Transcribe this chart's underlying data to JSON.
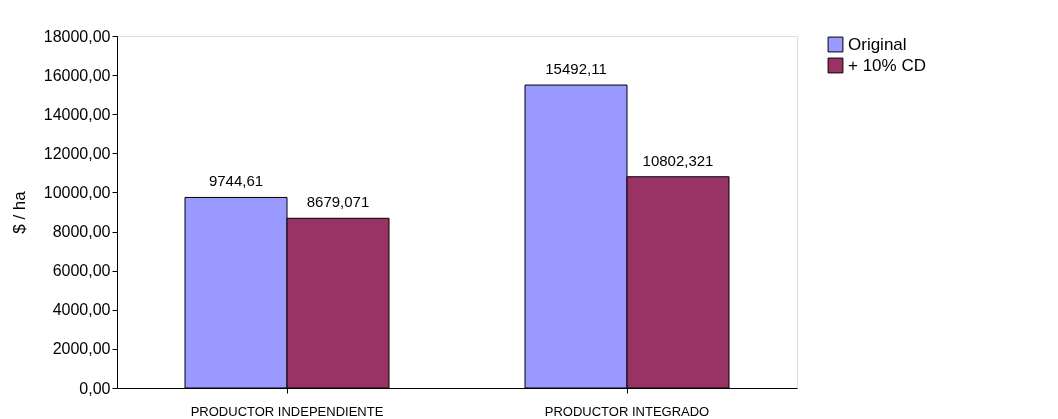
{
  "chart_data": {
    "type": "bar",
    "ylabel": "$ / ha",
    "categories": [
      "PRODUCTOR INDEPENDIENTE",
      "PRODUCTOR INTEGRADO"
    ],
    "series": [
      {
        "name": "Original",
        "color": "#9999ff",
        "values": [
          9744.61,
          15492.11
        ],
        "value_labels": [
          "9744,61",
          "15492,11"
        ]
      },
      {
        "name": "+ 10% CD",
        "color": "#993366",
        "values": [
          8679.071,
          10802.321
        ],
        "value_labels": [
          "8679,071",
          "10802,321"
        ]
      }
    ],
    "ylim": [
      0,
      18000
    ],
    "yticks": [
      {
        "value": 0,
        "label": "0,00"
      },
      {
        "value": 2000,
        "label": "2000,00"
      },
      {
        "value": 4000,
        "label": "4000,00"
      },
      {
        "value": 6000,
        "label": "6000,00"
      },
      {
        "value": 8000,
        "label": "8000,00"
      },
      {
        "value": 10000,
        "label": "10000,00"
      },
      {
        "value": 12000,
        "label": "12000,00"
      },
      {
        "value": 14000,
        "label": "14000,00"
      },
      {
        "value": 16000,
        "label": "16000,00"
      },
      {
        "value": 18000,
        "label": "18000,00"
      }
    ],
    "grid": false,
    "legend": "right"
  }
}
